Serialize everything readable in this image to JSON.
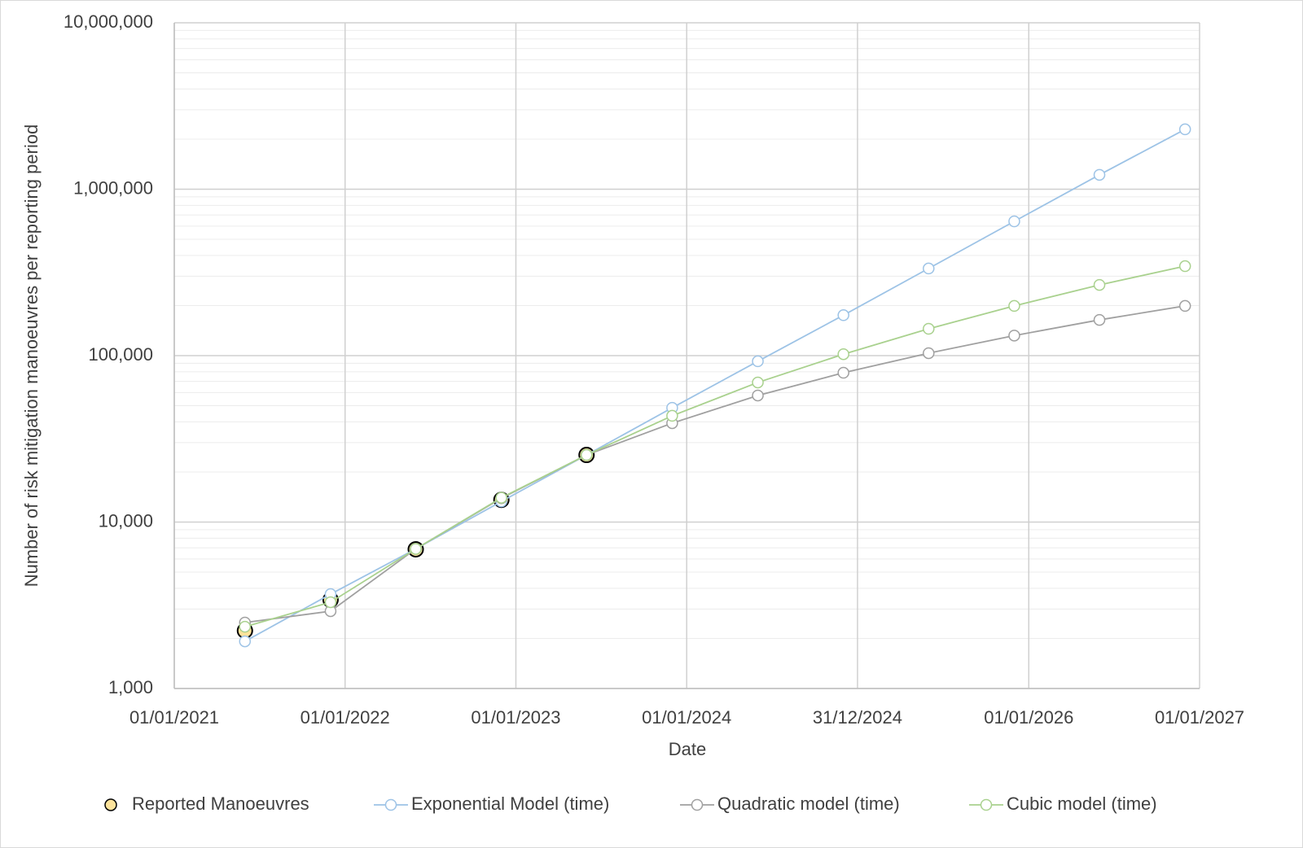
{
  "chart_data": {
    "type": "line",
    "y_label": "Number of risk mitigation manoeuvres per reporting period",
    "x_label": "Date",
    "x": [
      "01/06/2021",
      "01/12/2021",
      "01/06/2022",
      "01/12/2022",
      "01/06/2023",
      "01/12/2023",
      "01/06/2024",
      "01/12/2024",
      "01/06/2025",
      "01/12/2025",
      "01/06/2026",
      "01/12/2026"
    ],
    "xlim": [
      "01/01/2021",
      "01/01/2027"
    ],
    "xticks": [
      "01/01/2021",
      "01/01/2022",
      "01/01/2023",
      "01/01/2024",
      "31/12/2024",
      "01/01/2026",
      "01/01/2027"
    ],
    "ylim": [
      1000,
      10000000
    ],
    "yticks": [
      {
        "value": 1000,
        "label": "1,000"
      },
      {
        "value": 10000,
        "label": "10,000"
      },
      {
        "value": 100000,
        "label": "100,000"
      },
      {
        "value": 1000000,
        "label": "1,000,000"
      },
      {
        "value": 10000000,
        "label": "10,000,000"
      }
    ],
    "log_y": true,
    "grid": true,
    "minor_grid": true,
    "legend": "bottom",
    "series": [
      {
        "name": "Reported Manoeuvres",
        "color": "#000000",
        "marker_fill": "#fde39b",
        "line": false,
        "values": [
          2225,
          3410,
          6860,
          13600,
          25300,
          null,
          null,
          null,
          null,
          null,
          null,
          null
        ]
      },
      {
        "name": "Exponential Model (time)",
        "color": "#9dc3e6",
        "line": true,
        "values": [
          1920,
          3690,
          6900,
          13300,
          25300,
          48600,
          92500,
          175000,
          334000,
          641000,
          1220000,
          2290000
        ]
      },
      {
        "name": "Quadratic model (time)",
        "color": "#a0a0a0",
        "line": true,
        "values": [
          2490,
          2915,
          6900,
          13900,
          25300,
          39300,
          57600,
          78900,
          103500,
          132000,
          164000,
          199000
        ]
      },
      {
        "name": "Cubic model (time)",
        "color": "#a9d18e",
        "line": true,
        "values": [
          2350,
          3300,
          6900,
          14000,
          25300,
          43500,
          69000,
          102000,
          145000,
          199000,
          266000,
          345000
        ]
      }
    ]
  }
}
